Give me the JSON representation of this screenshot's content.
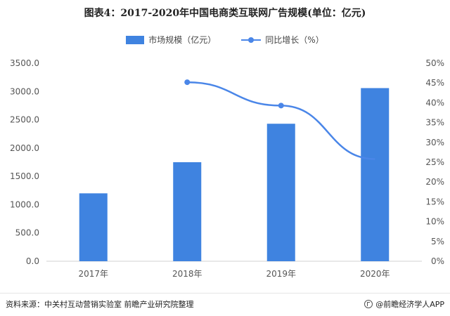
{
  "title": "图表4：2017-2020年中国电商类互联网广告规模(单位：亿元)",
  "legend": {
    "bar_label": "市场规模（亿元）",
    "line_label": "同比增长（%）"
  },
  "colors": {
    "bar": "#3F83E0",
    "line": "#4A86E8",
    "axis_text": "#555555",
    "grid": "#eeeeee"
  },
  "footer": {
    "source": "资料来源：中关村互动营销实验室 前瞻产业研究院整理",
    "brand": "@前瞻经济学人APP"
  },
  "chart_data": {
    "type": "bar",
    "categories": [
      "2017年",
      "2018年",
      "2019年",
      "2020年"
    ],
    "series": [
      {
        "name": "市场规模（亿元）",
        "type": "bar",
        "axis": "left",
        "values": [
          1200,
          1750,
          2430,
          3060
        ]
      },
      {
        "name": "同比增长（%）",
        "type": "line",
        "axis": "right",
        "values": [
          null,
          45.2,
          39.3,
          25.8
        ]
      }
    ],
    "y_left": {
      "min": 0,
      "max": 3500,
      "step": 500,
      "ticks": [
        "0.0",
        "500.0",
        "1000.0",
        "1500.0",
        "2000.0",
        "2500.0",
        "3000.0",
        "3500.0"
      ]
    },
    "y_right": {
      "min": 0,
      "max": 50,
      "step": 5,
      "ticks": [
        "0%",
        "5%",
        "10%",
        "15%",
        "20%",
        "25%",
        "30%",
        "35%",
        "40%",
        "45%",
        "50%"
      ]
    },
    "grid": false,
    "legend_position": "top-center"
  }
}
